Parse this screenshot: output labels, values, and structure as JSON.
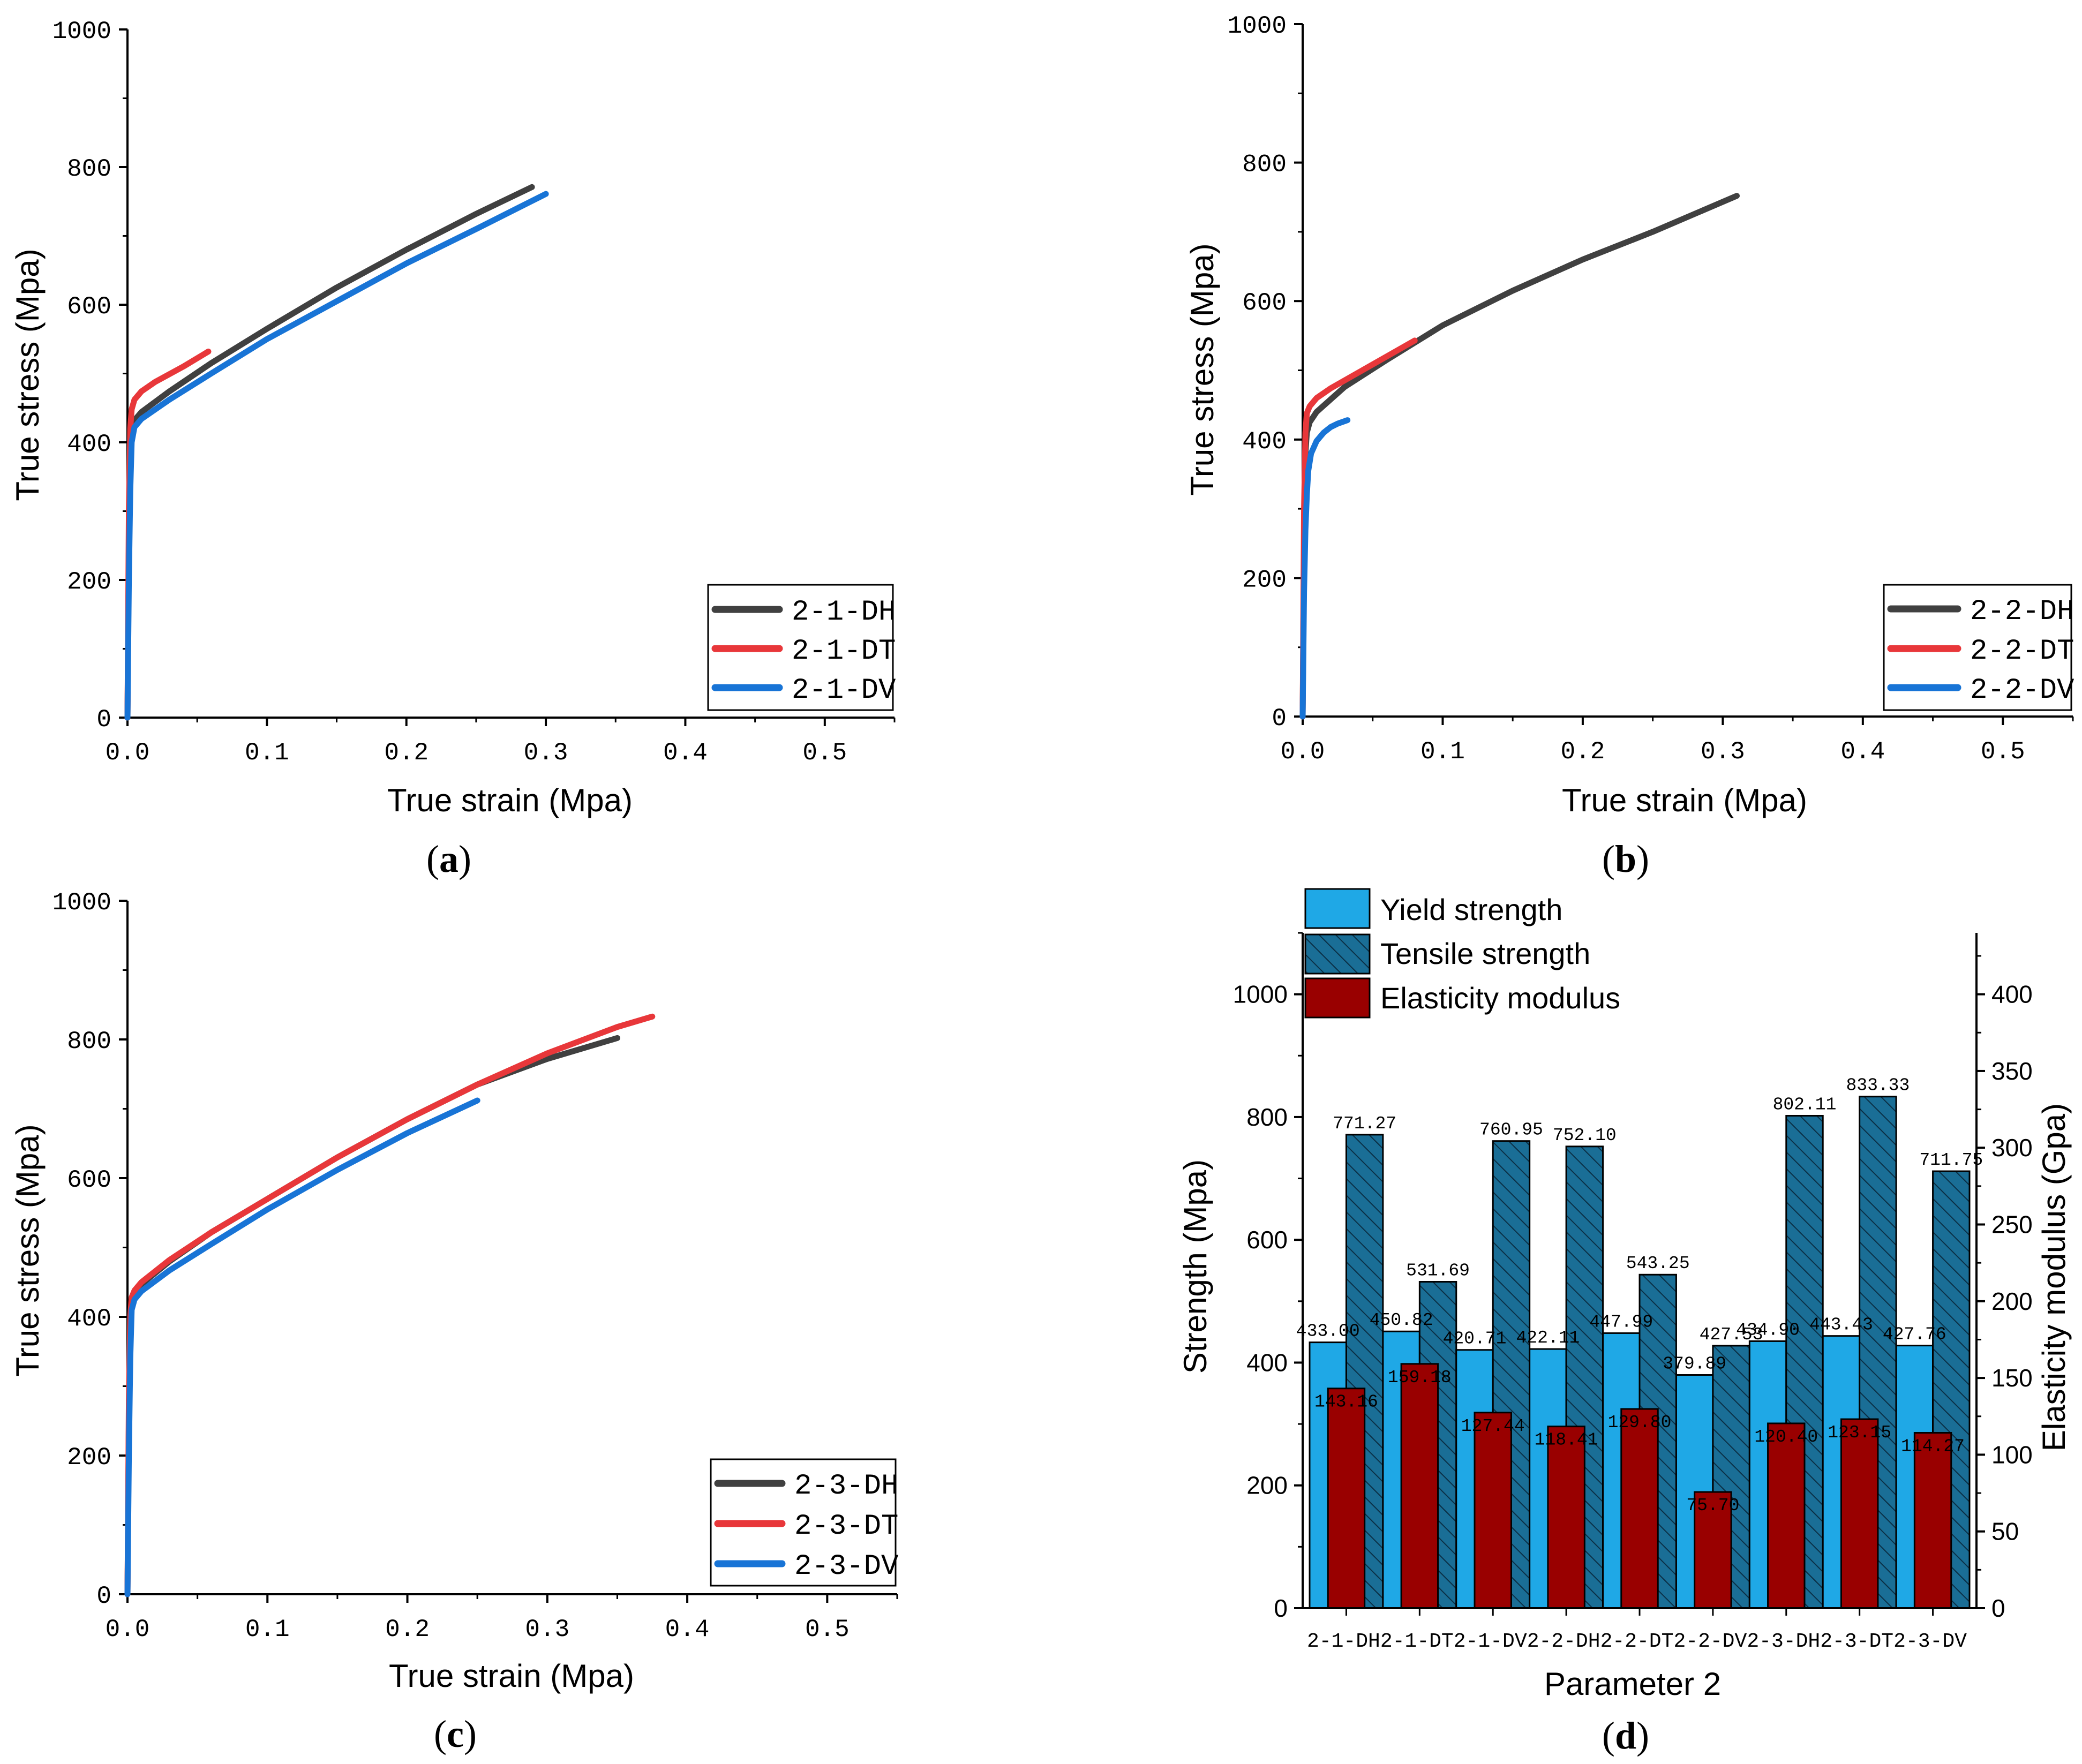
{
  "chart_data": [
    {
      "id": "a",
      "type": "line",
      "panel_label": "a",
      "xlabel": "True strain (Mpa)",
      "ylabel": "True stress (Mpa)",
      "xlim": [
        0.0,
        0.55
      ],
      "ylim": [
        0,
        1000
      ],
      "xticks": [
        "0.0",
        "0.1",
        "0.2",
        "0.3",
        "0.4",
        "0.5"
      ],
      "xtick_values": [
        0.0,
        0.1,
        0.2,
        0.3,
        0.4,
        0.5
      ],
      "yticks": [
        "0",
        "200",
        "400",
        "600",
        "800",
        "1000"
      ],
      "ytick_values": [
        0,
        200,
        400,
        600,
        800,
        1000
      ],
      "legend_position": "bottom-right",
      "series": [
        {
          "name": "2-1-DH",
          "color": "#404040",
          "x": [
            0.0,
            0.001,
            0.002,
            0.003,
            0.005,
            0.01,
            0.03,
            0.06,
            0.1,
            0.15,
            0.2,
            0.25,
            0.29
          ],
          "y": [
            0,
            250,
            380,
            420,
            432,
            444,
            474,
            515,
            565,
            625,
            680,
            732,
            771
          ]
        },
        {
          "name": "2-1-DT",
          "color": "#e8373a",
          "x": [
            0.0,
            0.001,
            0.002,
            0.003,
            0.005,
            0.01,
            0.02,
            0.04,
            0.058
          ],
          "y": [
            0,
            300,
            420,
            448,
            462,
            474,
            488,
            510,
            532
          ]
        },
        {
          "name": "2-1-DV",
          "color": "#1874d6",
          "x": [
            0.0,
            0.001,
            0.002,
            0.003,
            0.005,
            0.01,
            0.03,
            0.06,
            0.1,
            0.15,
            0.2,
            0.25,
            0.3
          ],
          "y": [
            0,
            200,
            330,
            400,
            422,
            434,
            462,
            500,
            550,
            605,
            660,
            710,
            761
          ]
        }
      ]
    },
    {
      "id": "b",
      "type": "line",
      "panel_label": "b",
      "xlabel": "True strain (Mpa)",
      "ylabel": "True stress (Mpa)",
      "xlim": [
        0.0,
        0.55
      ],
      "ylim": [
        0,
        1000
      ],
      "xticks": [
        "0.0",
        "0.1",
        "0.2",
        "0.3",
        "0.4",
        "0.5"
      ],
      "xtick_values": [
        0.0,
        0.1,
        0.2,
        0.3,
        0.4,
        0.5
      ],
      "yticks": [
        "0",
        "200",
        "400",
        "600",
        "800",
        "1000"
      ],
      "ytick_values": [
        0,
        200,
        400,
        600,
        800,
        1000
      ],
      "legend_position": "bottom-right",
      "series": [
        {
          "name": "2-2-DH",
          "color": "#404040",
          "x": [
            0.0,
            0.001,
            0.002,
            0.003,
            0.005,
            0.01,
            0.03,
            0.06,
            0.1,
            0.15,
            0.2,
            0.25,
            0.31
          ],
          "y": [
            0,
            250,
            380,
            410,
            425,
            440,
            476,
            515,
            565,
            615,
            660,
            700,
            752
          ]
        },
        {
          "name": "2-2-DT",
          "color": "#e8373a",
          "x": [
            0.0,
            0.001,
            0.002,
            0.003,
            0.005,
            0.01,
            0.02,
            0.04,
            0.06,
            0.08
          ],
          "y": [
            0,
            300,
            410,
            438,
            448,
            460,
            474,
            497,
            520,
            543
          ]
        },
        {
          "name": "2-2-DV",
          "color": "#1874d6",
          "x": [
            0.0,
            0.001,
            0.002,
            0.003,
            0.004,
            0.006,
            0.01,
            0.015,
            0.02,
            0.025,
            0.032
          ],
          "y": [
            0,
            180,
            270,
            320,
            355,
            380,
            398,
            410,
            418,
            423,
            428
          ]
        }
      ]
    },
    {
      "id": "c",
      "type": "line",
      "panel_label": "c",
      "xlabel": "True strain (Mpa)",
      "ylabel": "True stress (Mpa)",
      "xlim": [
        0.0,
        0.55
      ],
      "ylim": [
        0,
        1000
      ],
      "xticks": [
        "0.0",
        "0.1",
        "0.2",
        "0.3",
        "0.4",
        "0.5"
      ],
      "xtick_values": [
        0.0,
        0.1,
        0.2,
        0.3,
        0.4,
        0.5
      ],
      "yticks": [
        "0",
        "200",
        "400",
        "600",
        "800",
        "1000"
      ],
      "ytick_values": [
        0,
        200,
        400,
        600,
        800,
        1000
      ],
      "legend_position": "bottom-right",
      "series": [
        {
          "name": "2-3-DH",
          "color": "#404040",
          "x": [
            0.0,
            0.001,
            0.002,
            0.003,
            0.005,
            0.01,
            0.03,
            0.06,
            0.1,
            0.15,
            0.2,
            0.25,
            0.3,
            0.35
          ],
          "y": [
            0,
            250,
            380,
            420,
            435,
            447,
            480,
            522,
            570,
            630,
            685,
            735,
            772,
            802
          ]
        },
        {
          "name": "2-3-DT",
          "color": "#e8373a",
          "x": [
            0.0,
            0.001,
            0.002,
            0.003,
            0.005,
            0.01,
            0.03,
            0.06,
            0.1,
            0.15,
            0.2,
            0.25,
            0.3,
            0.35,
            0.375
          ],
          "y": [
            0,
            280,
            400,
            428,
            438,
            450,
            482,
            522,
            570,
            630,
            685,
            735,
            780,
            818,
            833
          ]
        },
        {
          "name": "2-3-DV",
          "color": "#1874d6",
          "x": [
            0.0,
            0.001,
            0.002,
            0.003,
            0.005,
            0.01,
            0.03,
            0.06,
            0.1,
            0.15,
            0.2,
            0.25
          ],
          "y": [
            0,
            200,
            340,
            410,
            425,
            437,
            467,
            505,
            555,
            612,
            665,
            712
          ]
        }
      ]
    },
    {
      "id": "d",
      "type": "bar",
      "panel_label": "d",
      "xlabel": "Parameter 2",
      "ylabel": "Strength (Mpa)",
      "ylabel_right": "Elasticity modulus (Gpa)",
      "ylim": [
        0,
        1100
      ],
      "ylim_right": [
        0,
        440
      ],
      "yticks": [
        "0",
        "200",
        "400",
        "600",
        "800",
        "1000"
      ],
      "ytick_values": [
        0,
        200,
        400,
        600,
        800,
        1000
      ],
      "yticks_right": [
        "0",
        "50",
        "100",
        "150",
        "200",
        "250",
        "300",
        "350",
        "400"
      ],
      "ytick_values_right": [
        0,
        50,
        100,
        150,
        200,
        250,
        300,
        350,
        400
      ],
      "categories": [
        "2-1-DH",
        "2-1-DT",
        "2-1-DV",
        "2-2-DH",
        "2-2-DT",
        "2-2-DV",
        "2-3-DH",
        "2-3-DT",
        "2-3-DV"
      ],
      "legend_position": "top-left",
      "series": [
        {
          "name": "Yield strength",
          "axis": "left",
          "color": "#1fa8e6",
          "values": [
            433.0,
            450.82,
            420.71,
            422.11,
            447.99,
            379.89,
            434.9,
            443.43,
            427.76
          ],
          "labels": [
            "433.00",
            "450.82",
            "420.71",
            "422.11",
            "447.99",
            "379.89",
            "434.90",
            "443.43",
            "427.76"
          ]
        },
        {
          "name": "Tensile strength",
          "axis": "left",
          "color": "#1a6e96",
          "values": [
            771.27,
            531.69,
            760.95,
            752.1,
            543.25,
            427.53,
            802.11,
            833.33,
            711.75
          ],
          "labels": [
            "771.27",
            "531.69",
            "760.95",
            "752.10",
            "543.25",
            "427.53",
            "802.11",
            "833.33",
            "711.75"
          ]
        },
        {
          "name": "Elasticity modulus",
          "axis": "right",
          "color": "#990000",
          "values": [
            143.16,
            159.18,
            127.44,
            118.41,
            129.8,
            75.7,
            120.4,
            123.15,
            114.27
          ],
          "labels": [
            "143.16",
            "159.18",
            "127.44",
            "118.41",
            "129.80",
            "75.70",
            "120.40",
            "123.15",
            "114.27"
          ]
        }
      ]
    }
  ]
}
